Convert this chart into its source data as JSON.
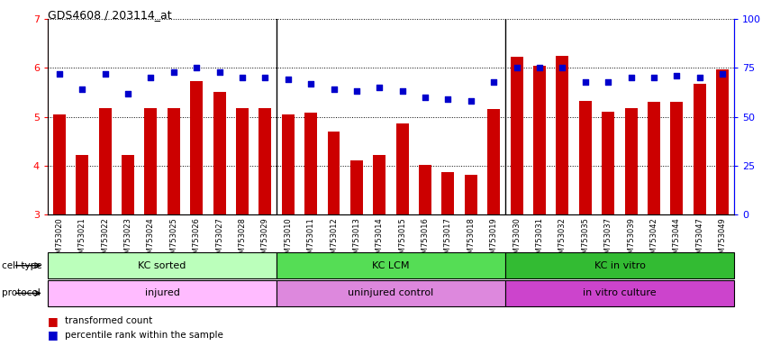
{
  "title": "GDS4608 / 203114_at",
  "samples": [
    "GSM753020",
    "GSM753021",
    "GSM753022",
    "GSM753023",
    "GSM753024",
    "GSM753025",
    "GSM753026",
    "GSM753027",
    "GSM753028",
    "GSM753029",
    "GSM753010",
    "GSM753011",
    "GSM753012",
    "GSM753013",
    "GSM753014",
    "GSM753015",
    "GSM753016",
    "GSM753017",
    "GSM753018",
    "GSM753019",
    "GSM753030",
    "GSM753031",
    "GSM753032",
    "GSM753035",
    "GSM753037",
    "GSM753039",
    "GSM753042",
    "GSM753044",
    "GSM753047",
    "GSM753049"
  ],
  "bar_values": [
    5.05,
    4.22,
    5.18,
    4.22,
    5.17,
    5.18,
    5.73,
    5.5,
    5.18,
    5.18,
    5.05,
    5.08,
    4.7,
    4.1,
    4.22,
    4.87,
    4.02,
    3.87,
    3.82,
    5.15,
    6.22,
    6.05,
    6.25,
    5.32,
    5.1,
    5.18,
    5.3,
    5.3,
    5.67,
    5.97
  ],
  "dot_values": [
    72,
    64,
    72,
    62,
    70,
    73,
    75,
    73,
    70,
    70,
    69,
    67,
    64,
    63,
    65,
    63,
    60,
    59,
    58,
    68,
    75,
    75,
    75,
    68,
    68,
    70,
    70,
    71,
    70,
    72
  ],
  "bar_color": "#cc0000",
  "dot_color": "#0000cc",
  "ylim_left": [
    3,
    7
  ],
  "ylim_right": [
    0,
    100
  ],
  "yticks_left": [
    3,
    4,
    5,
    6,
    7
  ],
  "yticks_right": [
    0,
    25,
    50,
    75,
    100
  ],
  "group_boundaries": [
    10,
    20
  ],
  "cell_type_labels": [
    "KC sorted",
    "KC LCM",
    "KC in vitro"
  ],
  "cell_type_colors": [
    "#bbffbb",
    "#55dd55",
    "#33bb33"
  ],
  "protocol_colors_list": [
    "#ffbbff",
    "#dd88dd",
    "#cc44cc"
  ],
  "protocol_labels": [
    "injured",
    "uninjured control",
    "in vitro culture"
  ],
  "legend_bar_label": "transformed count",
  "legend_dot_label": "percentile rank within the sample"
}
